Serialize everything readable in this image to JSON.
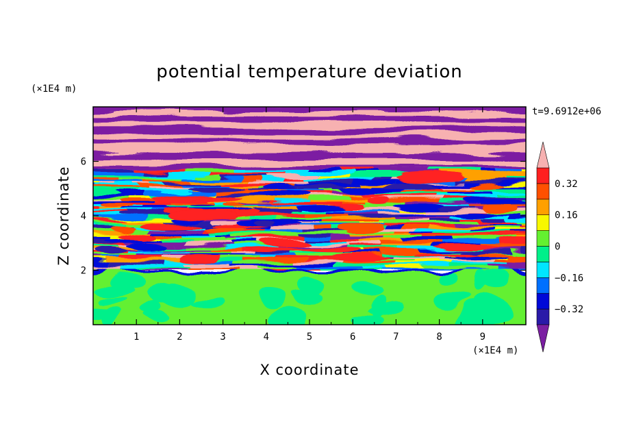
{
  "chart_data": {
    "type": "heatmap",
    "title": "potential temperature deviation",
    "xlabel": "X coordinate",
    "ylabel": "Z coordinate",
    "x_unit_label": "(×1E4 m)",
    "y_unit_label": "(×1E4 m)",
    "time_label": "t=9.6912e+06",
    "xlim": [
      0,
      10
    ],
    "ylim": [
      0,
      8
    ],
    "x_ticks": [
      1,
      2,
      3,
      4,
      5,
      6,
      7,
      8,
      9
    ],
    "y_ticks": [
      2,
      4,
      6
    ],
    "x_tick_labels": [
      "1",
      "2",
      "3",
      "4",
      "5",
      "6",
      "7",
      "8",
      "9"
    ],
    "y_tick_labels": [
      "2",
      "4",
      "6"
    ],
    "colorbar": {
      "levels": [
        -0.4,
        -0.32,
        -0.24,
        -0.16,
        -0.08,
        0,
        0.08,
        0.16,
        0.24,
        0.32,
        0.4
      ],
      "colors": [
        "#7b1fa2",
        "#2a1aa8",
        "#0008d8",
        "#0070ff",
        "#00e6ff",
        "#00f08a",
        "#64f030",
        "#f8f800",
        "#ffa000",
        "#ff5000",
        "#ff2020",
        "#f7b1b1"
      ],
      "tick_values": [
        0.32,
        0.16,
        0,
        -0.16,
        -0.32
      ],
      "tick_labels": [
        "0.32",
        "0.16",
        "0",
        "−0.16",
        "−0.32"
      ],
      "extend": "both"
    },
    "regions": [
      {
        "z_range": [
          0,
          2
        ],
        "description_values": "near-zero deviation (green / light-green)"
      },
      {
        "z_range": [
          2,
          5.5
        ],
        "description_values": "mixed bands from -0.4 to 0.4"
      },
      {
        "z_range": [
          5.5,
          8
        ],
        "description_values": "alternating bands of >0.4 (pink) and <-0.4 (purple)"
      }
    ]
  }
}
